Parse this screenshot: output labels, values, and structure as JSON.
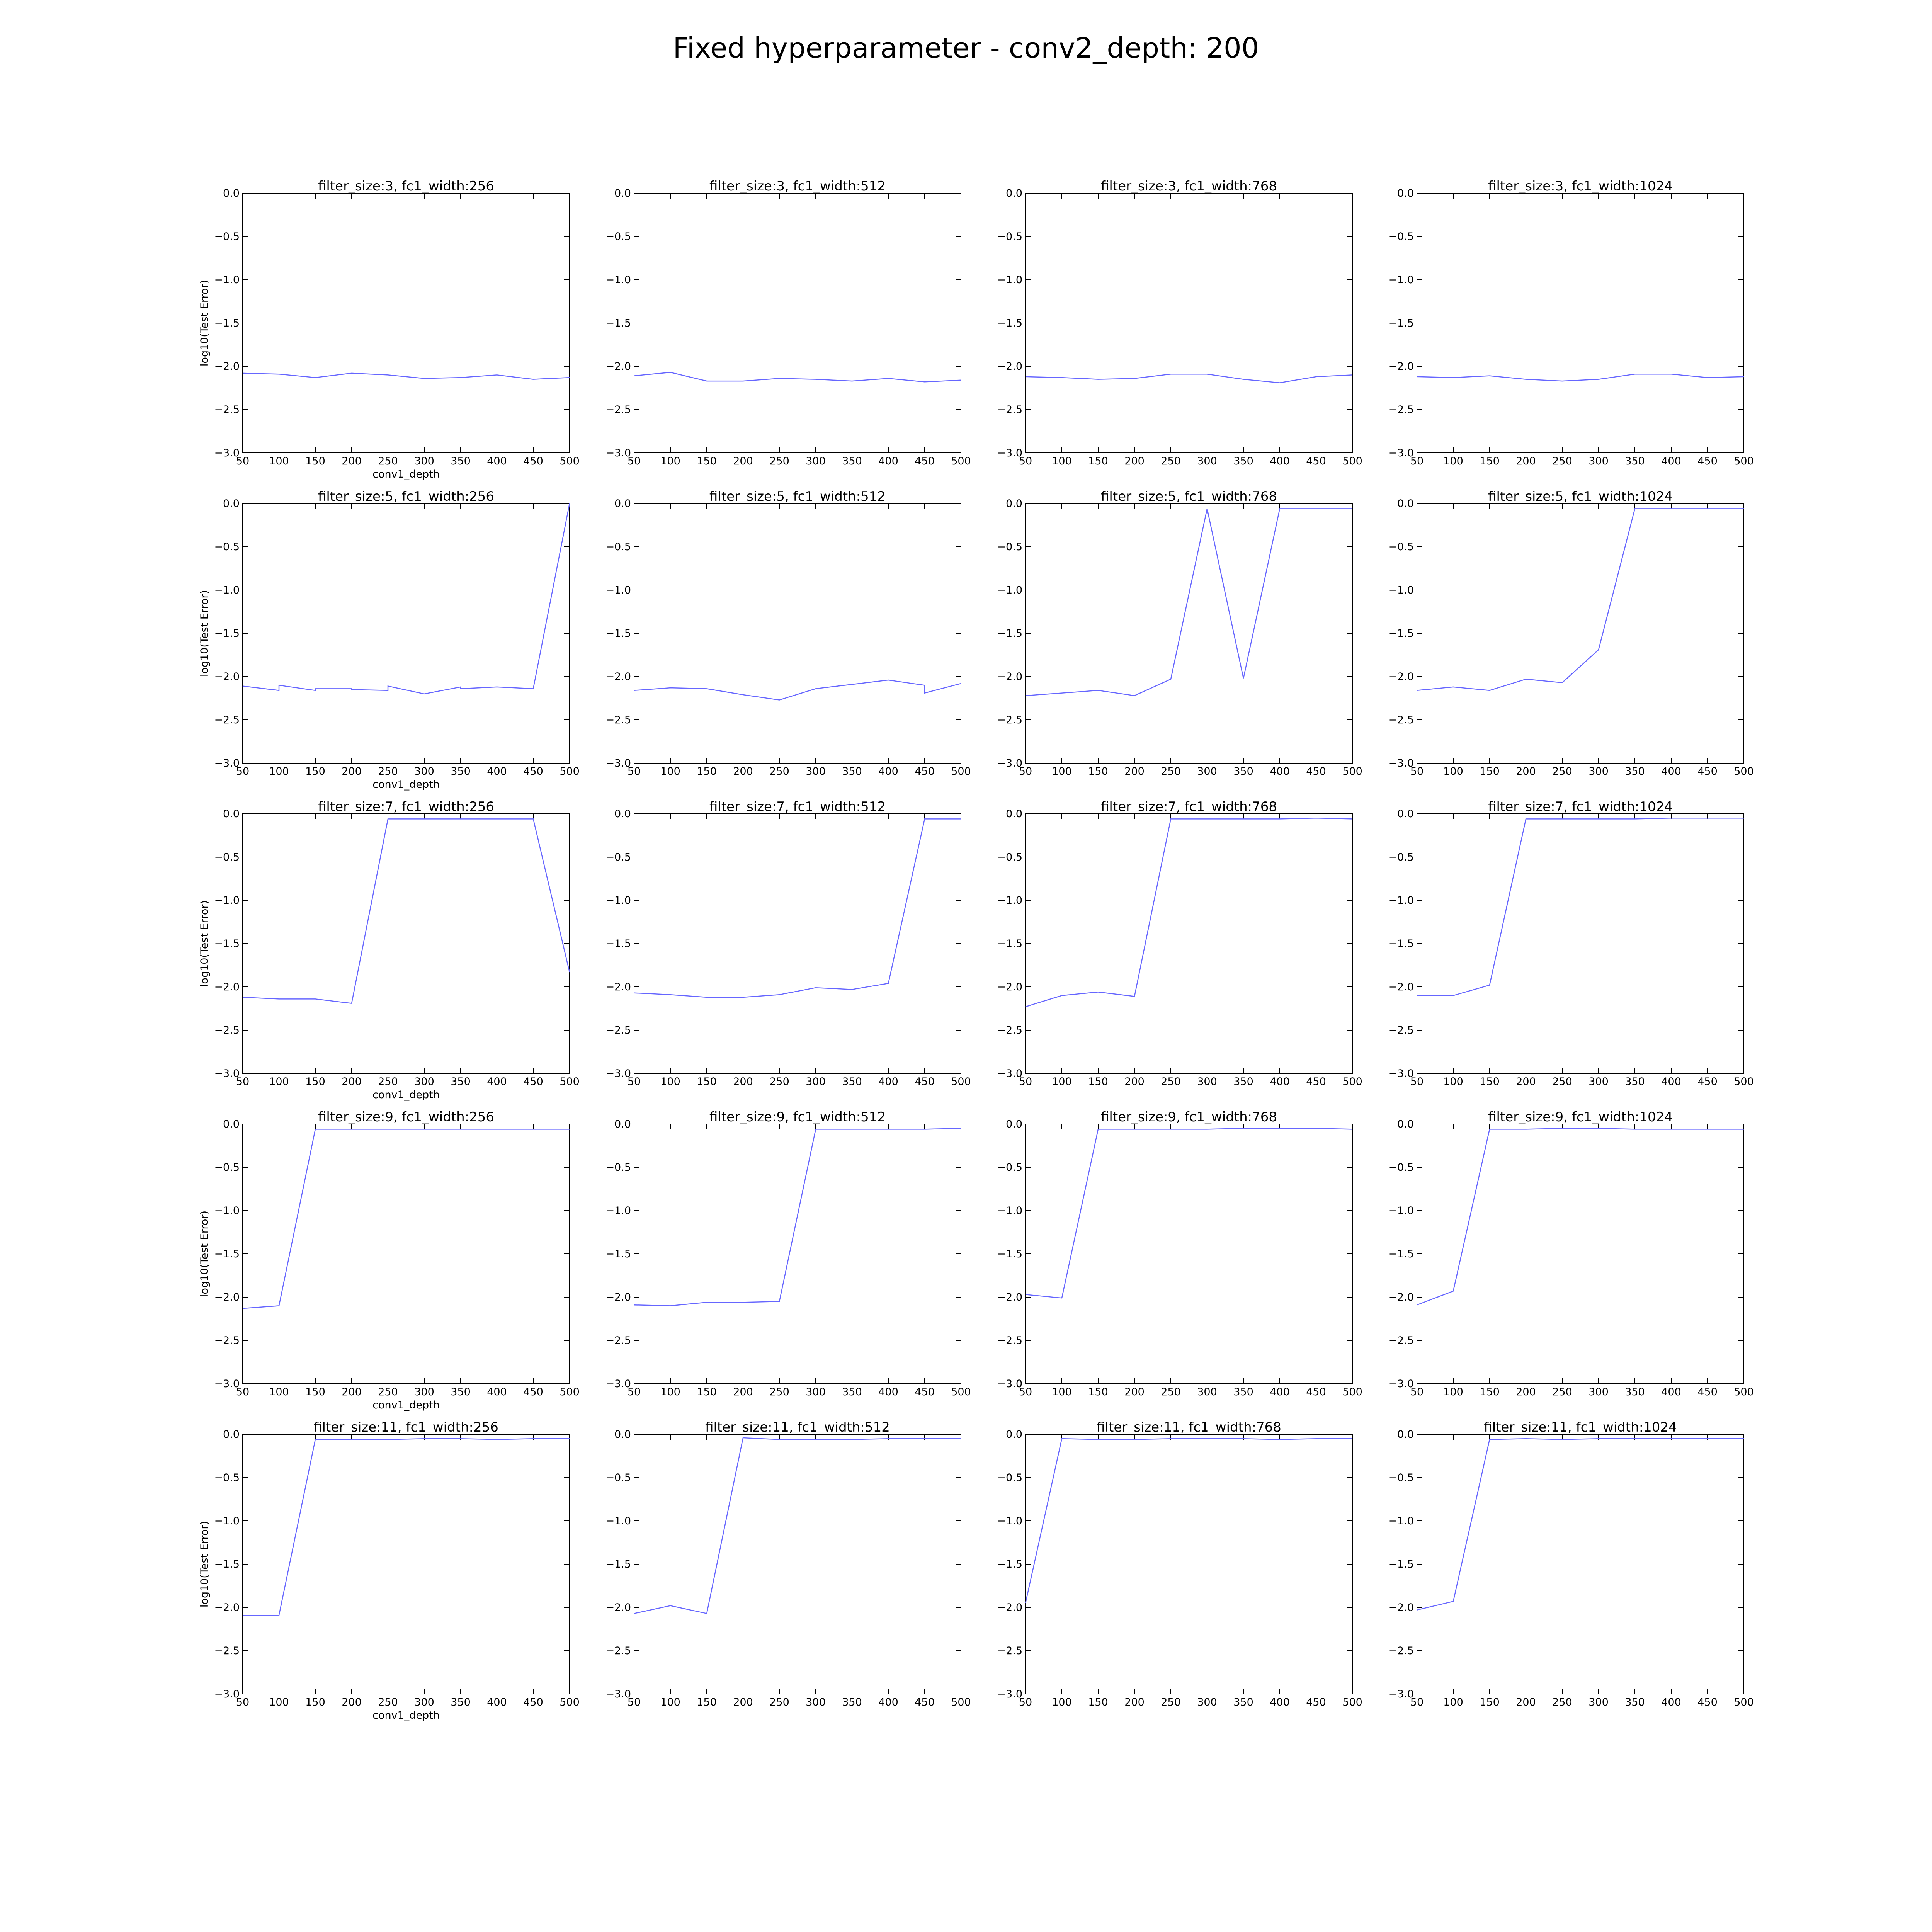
{
  "title": "Fixed hyperparameter - conv2_depth: 200",
  "colors": {
    "line": "#6666ff",
    "axes": "#000000",
    "background": "#ffffff"
  },
  "chart_data": {
    "type": "line",
    "layout": "5x4 subplot grid",
    "grid": false,
    "xlabel": "conv1_depth",
    "ylabel": "log10(Test Error)",
    "xlim": [
      50,
      500
    ],
    "ylim": [
      -3.0,
      0.0
    ],
    "x_ticks": [
      50,
      100,
      150,
      200,
      250,
      300,
      350,
      400,
      450,
      500
    ],
    "y_ticks": [
      0.0,
      -0.5,
      -1.0,
      -1.5,
      -2.0,
      -2.5,
      -3.0
    ],
    "y_tick_labels": [
      "0.0",
      "−0.5",
      "−1.0",
      "−1.5",
      "−2.0",
      "−2.5",
      "−3.0"
    ],
    "rows": [
      {
        "subplots": [
          {
            "title": "filter_size:3, fc1_width:256",
            "x": [
              50,
              100,
              150,
              200,
              250,
              300,
              350,
              400,
              450,
              500
            ],
            "y": [
              -2.08,
              -2.09,
              -2.13,
              -2.08,
              -2.1,
              -2.14,
              -2.13,
              -2.1,
              -2.15,
              -2.13
            ]
          },
          {
            "title": "filter_size:3, fc1_width:512",
            "x": [
              50,
              100,
              150,
              200,
              250,
              300,
              350,
              400,
              450,
              500
            ],
            "y": [
              -2.11,
              -2.07,
              -2.17,
              -2.17,
              -2.14,
              -2.15,
              -2.17,
              -2.14,
              -2.18,
              -2.16
            ]
          },
          {
            "title": "filter_size:3, fc1_width:768",
            "x": [
              50,
              100,
              150,
              200,
              250,
              300,
              350,
              400,
              450,
              500
            ],
            "y": [
              -2.12,
              -2.13,
              -2.15,
              -2.14,
              -2.09,
              -2.09,
              -2.15,
              -2.19,
              -2.12,
              -2.1
            ]
          },
          {
            "title": "filter_size:3, fc1_width:1024",
            "x": [
              50,
              100,
              150,
              200,
              250,
              300,
              350,
              400,
              450,
              500
            ],
            "y": [
              -2.12,
              -2.13,
              -2.11,
              -2.15,
              -2.17,
              -2.15,
              -2.09,
              -2.09,
              -2.13,
              -2.12
            ]
          }
        ]
      },
      {
        "subplots": [
          {
            "title": "filter_size:5, fc1_width:256",
            "x": [
              50,
              100,
              100,
              150,
              150,
              200,
              200,
              250,
              250,
              300,
              350,
              350,
              400,
              450,
              500
            ],
            "y": [
              -2.11,
              -2.16,
              -2.1,
              -2.16,
              -2.14,
              -2.14,
              -2.15,
              -2.16,
              -2.11,
              -2.2,
              -2.12,
              -2.14,
              -2.12,
              -2.14,
              0.0
            ]
          },
          {
            "title": "filter_size:5, fc1_width:512",
            "x": [
              50,
              100,
              150,
              200,
              250,
              300,
              350,
              400,
              450,
              450,
              500
            ],
            "y": [
              -2.16,
              -2.13,
              -2.14,
              -2.21,
              -2.27,
              -2.14,
              -2.09,
              -2.04,
              -2.1,
              -2.19,
              -2.08
            ]
          },
          {
            "title": "filter_size:5, fc1_width:768",
            "x": [
              50,
              100,
              150,
              200,
              250,
              300,
              350,
              400,
              450,
              500
            ],
            "y": [
              -2.22,
              -2.19,
              -2.16,
              -2.22,
              -2.03,
              -0.06,
              -2.02,
              -0.06,
              -0.06,
              -0.06
            ]
          },
          {
            "title": "filter_size:5, fc1_width:1024",
            "x": [
              50,
              100,
              150,
              200,
              250,
              300,
              350,
              400,
              450,
              500
            ],
            "y": [
              -2.16,
              -2.12,
              -2.16,
              -2.03,
              -2.07,
              -1.69,
              -0.06,
              -0.06,
              -0.06,
              -0.06
            ]
          }
        ]
      },
      {
        "subplots": [
          {
            "title": "filter_size:7, fc1_width:256",
            "x": [
              50,
              100,
              150,
              200,
              250,
              300,
              350,
              400,
              450,
              500
            ],
            "y": [
              -2.12,
              -2.14,
              -2.14,
              -2.19,
              -0.06,
              -0.06,
              -0.06,
              -0.06,
              -0.06,
              -1.83
            ]
          },
          {
            "title": "filter_size:7, fc1_width:512",
            "x": [
              50,
              100,
              150,
              200,
              250,
              300,
              350,
              400,
              450,
              500
            ],
            "y": [
              -2.07,
              -2.09,
              -2.12,
              -2.12,
              -2.09,
              -2.01,
              -2.03,
              -1.96,
              -0.06,
              -0.06
            ]
          },
          {
            "title": "filter_size:7, fc1_width:768",
            "x": [
              50,
              100,
              150,
              200,
              250,
              300,
              350,
              400,
              450,
              500
            ],
            "y": [
              -2.23,
              -2.1,
              -2.06,
              -2.11,
              -0.06,
              -0.06,
              -0.06,
              -0.06,
              -0.05,
              -0.06
            ]
          },
          {
            "title": "filter_size:7, fc1_width:1024",
            "x": [
              50,
              100,
              150,
              200,
              250,
              300,
              350,
              400,
              450,
              500
            ],
            "y": [
              -2.1,
              -2.1,
              -1.98,
              -0.06,
              -0.06,
              -0.06,
              -0.06,
              -0.05,
              -0.05,
              -0.05
            ]
          }
        ]
      },
      {
        "subplots": [
          {
            "title": "filter_size:9, fc1_width:256",
            "x": [
              50,
              100,
              150,
              200,
              250,
              300,
              350,
              400,
              450,
              500
            ],
            "y": [
              -2.13,
              -2.1,
              -0.06,
              -0.06,
              -0.06,
              -0.06,
              -0.06,
              -0.06,
              -0.06,
              -0.06
            ]
          },
          {
            "title": "filter_size:9, fc1_width:512",
            "x": [
              50,
              100,
              150,
              200,
              250,
              300,
              350,
              400,
              450,
              500
            ],
            "y": [
              -2.09,
              -2.1,
              -2.06,
              -2.06,
              -2.05,
              -0.06,
              -0.06,
              -0.06,
              -0.06,
              -0.05
            ]
          },
          {
            "title": "filter_size:9, fc1_width:768",
            "x": [
              50,
              100,
              150,
              200,
              250,
              300,
              350,
              400,
              450,
              500
            ],
            "y": [
              -1.97,
              -2.01,
              -0.06,
              -0.06,
              -0.06,
              -0.06,
              -0.05,
              -0.05,
              -0.05,
              -0.06
            ]
          },
          {
            "title": "filter_size:9, fc1_width:1024",
            "x": [
              50,
              100,
              150,
              200,
              250,
              300,
              350,
              400,
              450,
              500
            ],
            "y": [
              -2.09,
              -1.93,
              -0.06,
              -0.06,
              -0.05,
              -0.05,
              -0.06,
              -0.06,
              -0.06,
              -0.06
            ]
          }
        ]
      },
      {
        "subplots": [
          {
            "title": "filter_size:11, fc1_width:256",
            "x": [
              50,
              100,
              150,
              200,
              250,
              300,
              350,
              400,
              450,
              500
            ],
            "y": [
              -2.09,
              -2.09,
              -0.06,
              -0.06,
              -0.06,
              -0.05,
              -0.05,
              -0.06,
              -0.05,
              -0.05
            ]
          },
          {
            "title": "filter_size:11, fc1_width:512",
            "x": [
              50,
              100,
              150,
              200,
              250,
              300,
              350,
              400,
              450,
              500
            ],
            "y": [
              -2.07,
              -1.98,
              -2.07,
              -0.04,
              -0.06,
              -0.06,
              -0.06,
              -0.05,
              -0.05,
              -0.05
            ]
          },
          {
            "title": "filter_size:11, fc1_width:768",
            "x": [
              50,
              100,
              150,
              200,
              250,
              300,
              350,
              400,
              450,
              500
            ],
            "y": [
              -1.95,
              -0.05,
              -0.06,
              -0.06,
              -0.05,
              -0.05,
              -0.05,
              -0.06,
              -0.05,
              -0.05
            ]
          },
          {
            "title": "filter_size:11, fc1_width:1024",
            "x": [
              50,
              100,
              150,
              200,
              250,
              300,
              350,
              400,
              450,
              500
            ],
            "y": [
              -2.03,
              -1.93,
              -0.06,
              -0.05,
              -0.06,
              -0.05,
              -0.05,
              -0.05,
              -0.05,
              -0.05
            ]
          }
        ]
      }
    ]
  }
}
